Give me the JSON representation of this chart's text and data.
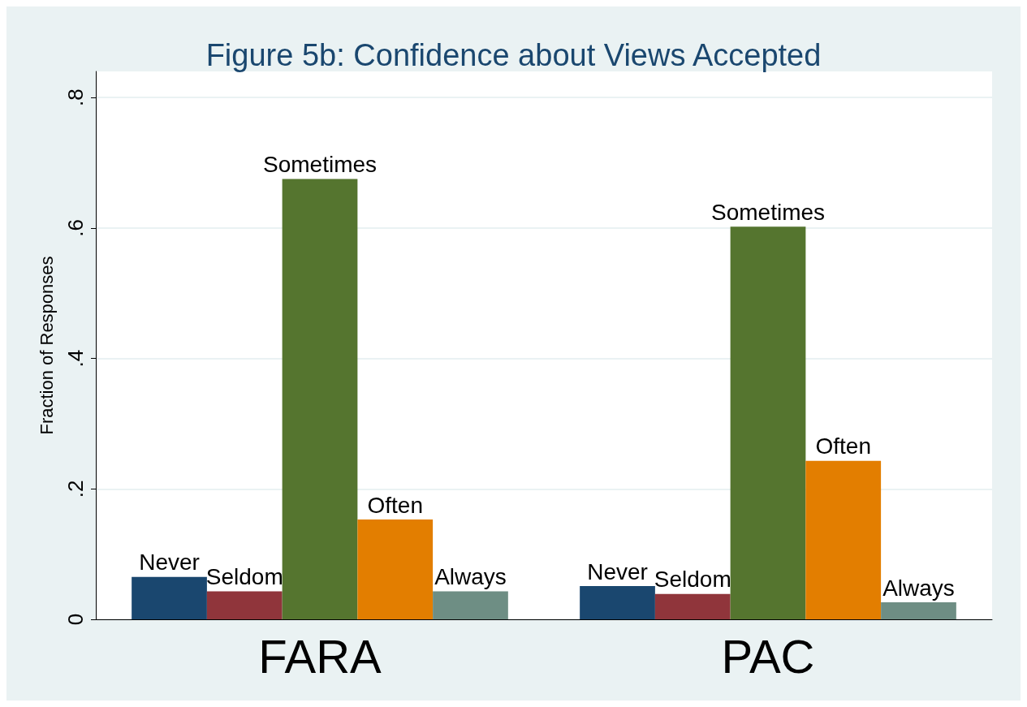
{
  "chart_data": {
    "type": "bar",
    "title": "Figure 5b: Confidence about Views Accepted",
    "ylabel": "Fraction of Responses",
    "categories": [
      "FARA",
      "PAC"
    ],
    "series": [
      {
        "name": "Never",
        "color": "#1a476f",
        "values": [
          0.065,
          0.051
        ]
      },
      {
        "name": "Seldom",
        "color": "#90353b",
        "values": [
          0.043,
          0.039
        ]
      },
      {
        "name": "Sometimes",
        "color": "#55752f",
        "values": [
          0.675,
          0.602
        ]
      },
      {
        "name": "Often",
        "color": "#e37e00",
        "values": [
          0.153,
          0.243
        ]
      },
      {
        "name": "Always",
        "color": "#6e8e84",
        "values": [
          0.043,
          0.026
        ]
      }
    ],
    "ylim": [
      0,
      0.84
    ],
    "yticks": [
      {
        "value": 0,
        "label": "0"
      },
      {
        "value": 0.2,
        "label": ".2"
      },
      {
        "value": 0.4,
        "label": ".4"
      },
      {
        "value": 0.6,
        "label": ".6"
      },
      {
        "value": 0.8,
        "label": ".8"
      }
    ],
    "grid": "y",
    "legend": false
  }
}
